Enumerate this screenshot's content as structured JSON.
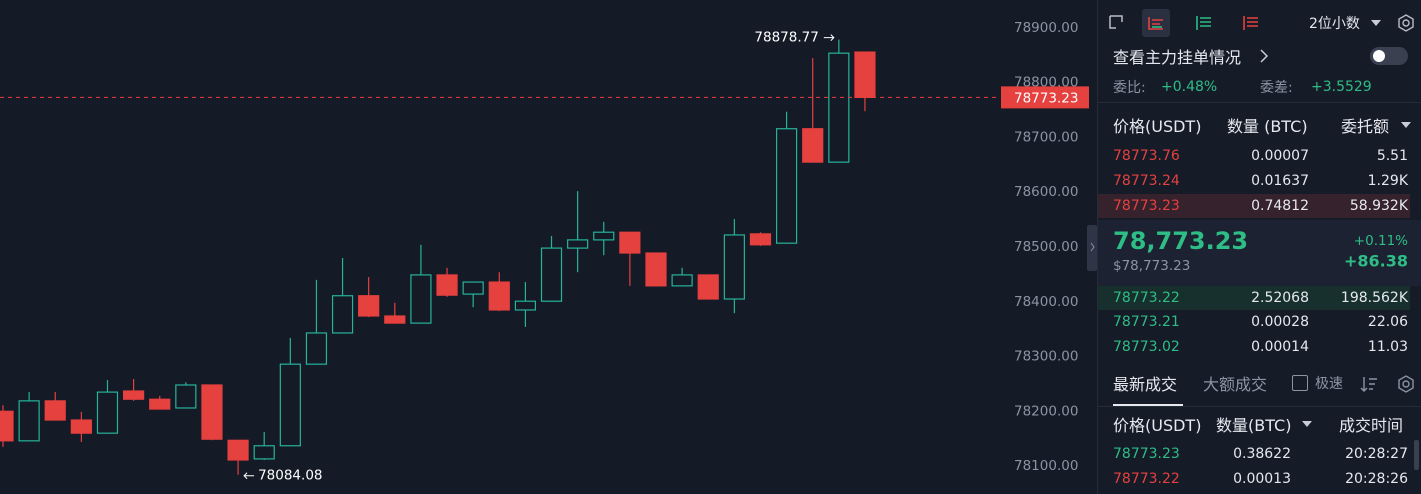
{
  "chart_data": {
    "type": "candlestick",
    "open": [
      78200,
      78146,
      78219,
      78184,
      78160,
      78237,
      78222,
      78206,
      78248,
      78147,
      78113,
      78137,
      78286,
      78343,
      78411,
      78374,
      78361,
      78449,
      78414,
      78436,
      78385,
      78401,
      78498,
      78513,
      78527,
      78489,
      78429,
      78449,
      78405,
      78524,
      78507,
      78716,
      78655,
      78856
    ],
    "high": [
      78211,
      78235,
      78235,
      78199,
      78257,
      78259,
      78228,
      78253,
      78248,
      78147,
      78162,
      78334,
      78440,
      78480,
      78445,
      78398,
      78504,
      78462,
      78436,
      78454,
      78436,
      78520,
      78602,
      78546,
      78527,
      78489,
      78462,
      78449,
      78551,
      78527,
      78747,
      78845,
      78878.77,
      78856
    ],
    "low": [
      78135,
      78146,
      78184,
      78144,
      78160,
      78219,
      78204,
      78206,
      78147,
      78084.08,
      78111,
      78137,
      78286,
      78343,
      78372,
      78361,
      78361,
      78409,
      78390,
      78383,
      78354,
      78401,
      78454,
      78485,
      78429,
      78429,
      78429,
      78405,
      78379,
      78502,
      78507,
      78655,
      78655,
      78748
    ],
    "close": [
      78146,
      78219,
      78184,
      78160,
      78235,
      78222,
      78204,
      78248,
      78149,
      78111,
      78137,
      78286,
      78343,
      78411,
      78374,
      78361,
      78449,
      78412,
      78436,
      78385,
      78401,
      78498,
      78513,
      78527,
      78489,
      78429,
      78449,
      78405,
      78522,
      78504,
      78716,
      78655,
      78854,
      78773.23
    ],
    "up_color": "#26b39a",
    "down_color": "#e5413f",
    "ylim": [
      78048.9,
      78951.1
    ],
    "yticks": [
      {
        "value": 78100,
        "label": "78100.00"
      },
      {
        "value": 78200,
        "label": "78200.00"
      },
      {
        "value": 78300,
        "label": "78300.00"
      },
      {
        "value": 78400,
        "label": "78400.00"
      },
      {
        "value": 78500,
        "label": "78500.00"
      },
      {
        "value": 78600,
        "label": "78600.00"
      },
      {
        "value": 78700,
        "label": "78700.00"
      },
      {
        "value": 78800,
        "label": "78800.00"
      },
      {
        "value": 78900,
        "label": "78900.00"
      }
    ],
    "last_price": {
      "value": 78773.23,
      "label": "78773.23"
    },
    "annotations": [
      {
        "value": 78878.77,
        "label": "78878.77"
      },
      {
        "value": 78084.08,
        "label": "78084.08"
      }
    ]
  },
  "toolbar": {
    "precision": "2位小数"
  },
  "depth_link": "查看主力挂单情况",
  "ratio": {
    "label": "委比:",
    "value": "+0.48%"
  },
  "diff": {
    "label": "委差:",
    "value": "+3.5529"
  },
  "order_book": {
    "headers": [
      "价格(USDT)",
      "数量 (BTC)",
      "委托额"
    ],
    "asks": [
      [
        "78773.76",
        "0.00007",
        "5.51"
      ],
      [
        "78773.24",
        "0.01637",
        "1.29K"
      ],
      [
        "78773.23",
        "0.74812",
        "58.932K"
      ]
    ],
    "last": {
      "price": "78,773.23",
      "fiat": "$78,773.23",
      "change_pct": "+0.11%",
      "change": "+86.38"
    },
    "bids": [
      [
        "78773.22",
        "2.52068",
        "198.562K"
      ],
      [
        "78773.21",
        "0.00028",
        "22.06"
      ],
      [
        "78773.02",
        "0.00014",
        "11.03"
      ]
    ]
  },
  "trades": {
    "tabs": [
      "最新成交",
      "大额成交"
    ],
    "fast": "极速",
    "headers": [
      "价格(USDT)",
      "数量(BTC)",
      "成交时间"
    ],
    "rows": [
      [
        "78773.23",
        "0.38622",
        "20:28:27"
      ],
      [
        "78773.22",
        "0.00013",
        "20:28:26"
      ]
    ]
  }
}
